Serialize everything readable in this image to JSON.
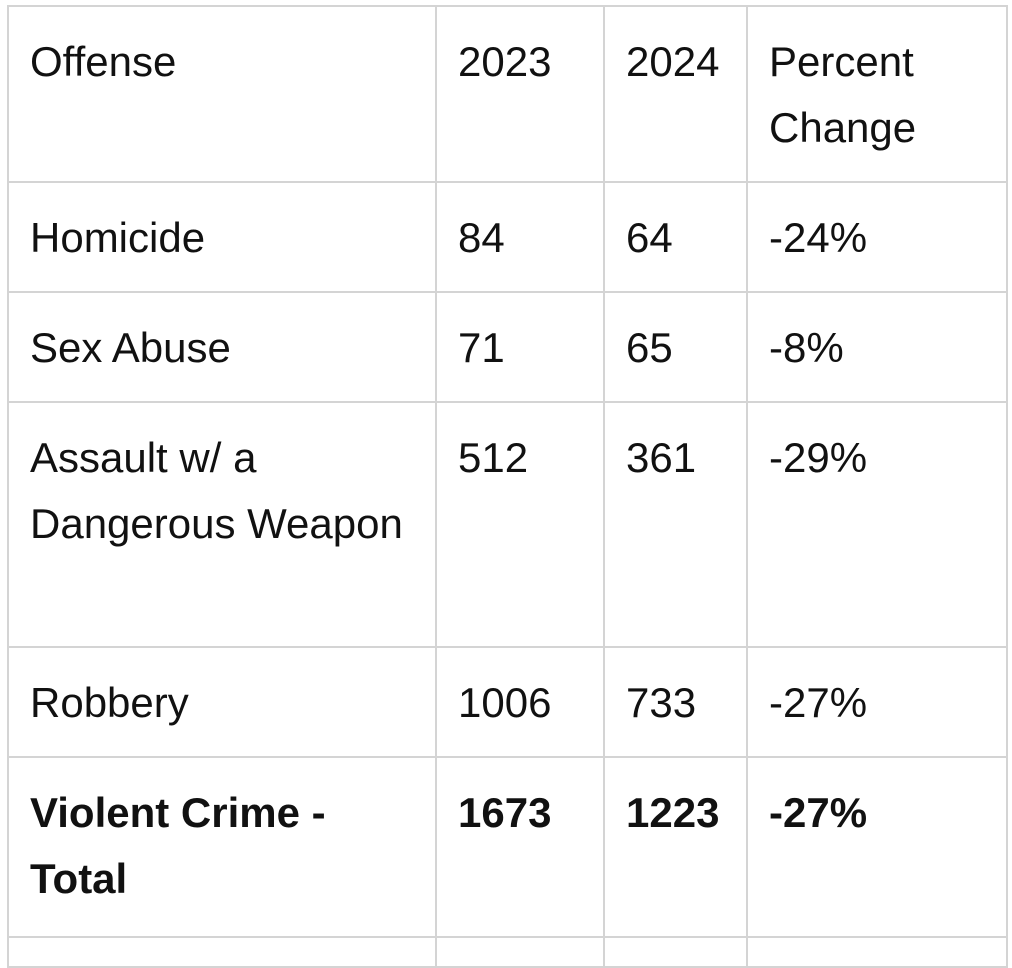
{
  "table": {
    "headers": [
      "Offense",
      "2023",
      "2024",
      "Percent Change"
    ],
    "rows": [
      {
        "offense": "Homicide",
        "y2023": "84",
        "y2024": "64",
        "change": "-24%"
      },
      {
        "offense": "Sex Abuse",
        "y2023": "71",
        "y2024": "65",
        "change": "-8%"
      },
      {
        "offense": "Assault w/ a Dangerous Weapon",
        "y2023": "512",
        "y2024": "361",
        "change": "-29%"
      },
      {
        "offense": "Robbery",
        "y2023": "1006",
        "y2024": "733",
        "change": "-27%"
      }
    ],
    "total": {
      "offense": "Violent Crime - Total",
      "y2023": "1673",
      "y2024": "1223",
      "change": "-27%"
    }
  }
}
